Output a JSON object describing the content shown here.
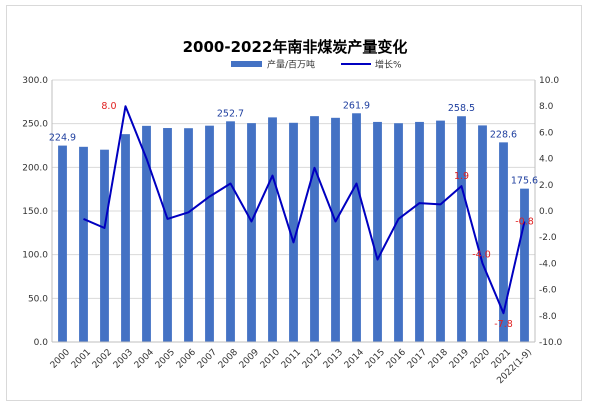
{
  "chart_data": {
    "type": "bar",
    "title": "2000-2022年南非煤炭产量变化",
    "categories": [
      "2000",
      "2001",
      "2002",
      "2003",
      "2004",
      "2005",
      "2006",
      "2007",
      "2008",
      "2009",
      "2010",
      "2011",
      "2012",
      "2013",
      "2014",
      "2015",
      "2016",
      "2017",
      "2018",
      "2019",
      "2020",
      "2021",
      "2022(1-9)"
    ],
    "series": [
      {
        "name": "产量/百万吨",
        "kind": "bar",
        "axis": "left",
        "color": "#4472c4",
        "values": [
          224.9,
          223.5,
          220.2,
          238.0,
          247.5,
          245.0,
          244.8,
          247.7,
          252.7,
          250.6,
          257.2,
          251.0,
          258.6,
          256.7,
          261.9,
          252.0,
          250.5,
          252.0,
          253.5,
          258.5,
          248.0,
          228.6,
          175.6
        ]
      },
      {
        "name": "增长%",
        "kind": "line",
        "axis": "right",
        "color": "#0000c0",
        "values": [
          null,
          -0.6,
          -1.3,
          8.0,
          4.0,
          -0.6,
          -0.1,
          1.1,
          2.1,
          -0.8,
          2.7,
          -2.4,
          3.3,
          -0.8,
          2.1,
          -3.7,
          -0.6,
          0.6,
          0.5,
          1.9,
          -4.0,
          -7.8,
          -0.8
        ]
      }
    ],
    "y_left": {
      "min": 0,
      "max": 300,
      "step": 50,
      "ticks": [
        "0.0",
        "50.0",
        "100.0",
        "150.0",
        "200.0",
        "250.0",
        "300.0"
      ]
    },
    "y_right": {
      "min": -10,
      "max": 10,
      "step": 2,
      "ticks": [
        "-10.0",
        "-8.0",
        "-6.0",
        "-4.0",
        "-2.0",
        "0.0",
        "2.0",
        "4.0",
        "6.0",
        "8.0",
        "10.0"
      ]
    },
    "bar_labels": [
      {
        "category": "2000",
        "text": "224.9"
      },
      {
        "category": "2008",
        "text": "252.7"
      },
      {
        "category": "2014",
        "text": "261.9"
      },
      {
        "category": "2019",
        "text": "258.5"
      },
      {
        "category": "2021",
        "text": "228.6"
      },
      {
        "category": "2022(1-9)",
        "text": "175.6"
      }
    ],
    "line_labels": [
      {
        "category": "2003",
        "text": "8.0"
      },
      {
        "category": "2019",
        "text": "1.9"
      },
      {
        "category": "2020",
        "text": "-4.0"
      },
      {
        "category": "2021",
        "text": "-7.8"
      },
      {
        "category": "2022(1-9)",
        "text": "-0.8"
      }
    ],
    "grid": true,
    "legend_position": "top-right",
    "label_colors": {
      "bar": "#1f3f9f",
      "line": "#e02020"
    }
  }
}
